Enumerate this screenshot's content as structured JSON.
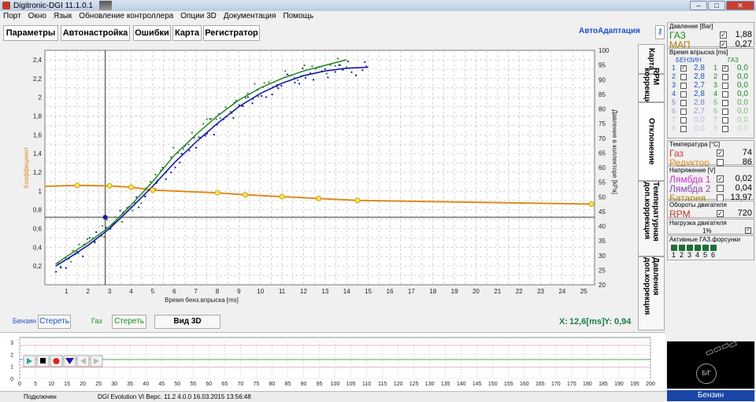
{
  "window": {
    "title": "Digitronic-DGI  11.1.0.1"
  },
  "menu": [
    "Порт",
    "Окно",
    "Язык",
    "Обновление контроллера",
    "Опции 3D",
    "Документация",
    "Помощь"
  ],
  "tabs": [
    "Параметры",
    "Автонастройка",
    "Ошибки",
    "Карта",
    "Регистратор"
  ],
  "auto_adapt": "АвтоАдаптация",
  "side_tabs": [
    "Карта",
    "RPM коррекция",
    "Отклонение",
    "Температурная доп.коррекция",
    "Давления доп.коррекция"
  ],
  "bottom": {
    "benzin_label": "Бензин",
    "benzin_clear": "Стереть",
    "gas_label": "Газ",
    "gas_clear": "Стереть",
    "view3d": "Вид 3D",
    "x_label": "X:",
    "x_value": "12,6[ms]",
    "y_label": "Y:",
    "y_value": "0,94"
  },
  "chart_data": {
    "type": "scatter",
    "xlabel": "Время бенз.впрыска [ms]",
    "ylabel_left": "Коэффициент",
    "ylabel_right": "Давление в коллекторе [kPa]",
    "xlim": [
      0,
      25.5
    ],
    "ylim_left": [
      0,
      2.5
    ],
    "ylim_right": [
      20,
      100
    ],
    "x_ticks": [
      1,
      2,
      3,
      4,
      5,
      6,
      7,
      8,
      9,
      10,
      11,
      12,
      13,
      14,
      15,
      16,
      17,
      18,
      19,
      20,
      21,
      22,
      23,
      24,
      25
    ],
    "y_ticks_left": [
      "0,2",
      "0,4",
      "0,6",
      "0,8",
      "1",
      "1,2",
      "1,4",
      "1,6",
      "1,8",
      "2",
      "2,2",
      "2,4"
    ],
    "y_ticks_right": [
      20,
      25,
      30,
      35,
      40,
      45,
      50,
      55,
      60,
      65,
      70,
      75,
      80,
      85,
      90,
      95,
      100
    ],
    "grid": true,
    "series": [
      {
        "color": "#e08a1e",
        "x": [
          0,
          1.5,
          3,
          4,
          5,
          8,
          9.3,
          11,
          12.7,
          14.5,
          25.5
        ],
        "y": [
          1.05,
          1.06,
          1.055,
          1.04,
          1.01,
          0.98,
          0.96,
          0.94,
          0.92,
          0.9,
          0.86
        ]
      },
      {
        "color": "#2e8b2e",
        "x": [
          0.5,
          1,
          2,
          3,
          4,
          5,
          6,
          7,
          8,
          9,
          10,
          11,
          12,
          13,
          14
        ],
        "y": [
          0.22,
          0.3,
          0.45,
          0.62,
          0.85,
          1.1,
          1.38,
          1.6,
          1.8,
          1.97,
          2.1,
          2.2,
          2.28,
          2.34,
          2.4
        ]
      },
      {
        "color": "#1a1aa0",
        "x": [
          0.5,
          1,
          2,
          3,
          4,
          5,
          6,
          7,
          8,
          9,
          10,
          11,
          12,
          13,
          14,
          15
        ],
        "y": [
          0.2,
          0.27,
          0.42,
          0.6,
          0.82,
          1.05,
          1.3,
          1.52,
          1.72,
          1.9,
          2.04,
          2.15,
          2.23,
          2.28,
          2.31,
          2.32
        ]
      }
    ],
    "cursor": {
      "x": 2.8,
      "y": 0.72
    }
  },
  "log": {
    "y_ticks": [
      "0",
      "1",
      "2",
      "3"
    ],
    "x_ticks": [
      "0",
      "5",
      "10",
      "15",
      "20",
      "25",
      "30",
      "35",
      "40",
      "45",
      "50",
      "55",
      "60",
      "65",
      "70",
      "75",
      "80",
      "85",
      "90",
      "95",
      "100",
      "105",
      "110",
      "115",
      "120",
      "125",
      "130",
      "135",
      "140",
      "145",
      "150",
      "155",
      "160",
      "165",
      "170",
      "175",
      "180",
      "185",
      "190",
      "195",
      "200"
    ]
  },
  "status": {
    "conn": "Подключен",
    "info": "DGI Evolution VI   Верс. 11.2  4.0.0    16.03.2015 13:56:48"
  },
  "right": {
    "pressure": {
      "header": "Давление [Bar]",
      "gas_label": "ГАЗ",
      "gas_value": "1,88",
      "map_label": "МАП",
      "map_value": "0,27"
    },
    "injection": {
      "header": "Время впрыска [ms]",
      "col1": "БЕНЗИН",
      "col2": "ГАЗ",
      "rows": [
        {
          "n": "1",
          "b": "2,8",
          "g": "0,0"
        },
        {
          "n": "2",
          "b": "2,8",
          "g": "0,0"
        },
        {
          "n": "3",
          "b": "2,7",
          "g": "0,0"
        },
        {
          "n": "4",
          "b": "2,8",
          "g": "0,0"
        },
        {
          "n": "5",
          "b": "2,8",
          "g": "0,0"
        },
        {
          "n": "6",
          "b": "2,7",
          "g": "0,0"
        },
        {
          "n": "7",
          "b": "0,0",
          "g": "0,0"
        },
        {
          "n": "8",
          "b": "0,0",
          "g": "0,0"
        }
      ]
    },
    "temp": {
      "header": "Температура [°C]",
      "gas_label": "Газ",
      "gas_value": "74",
      "red_label": "Редуктор",
      "red_value": "86"
    },
    "volt": {
      "header": "Напряжение [V]",
      "l1": "Лямбда 1",
      "l1v": "0,02",
      "l2": "Лямбда 2",
      "l2v": "0,04",
      "bat": "Батарея",
      "batv": "13,97"
    },
    "rpm": {
      "header": "Обороты двигателя",
      "label": "RPM",
      "value": "720"
    },
    "load": {
      "header": "Нагрузка двигателя",
      "value": "1%"
    },
    "nozzles": {
      "header": "Активные ГАЗ.форсунки",
      "nums": [
        "1",
        "2",
        "3",
        "4",
        "5",
        "6"
      ]
    },
    "gear_label": "Б/Г",
    "fuel": "Бензин"
  }
}
